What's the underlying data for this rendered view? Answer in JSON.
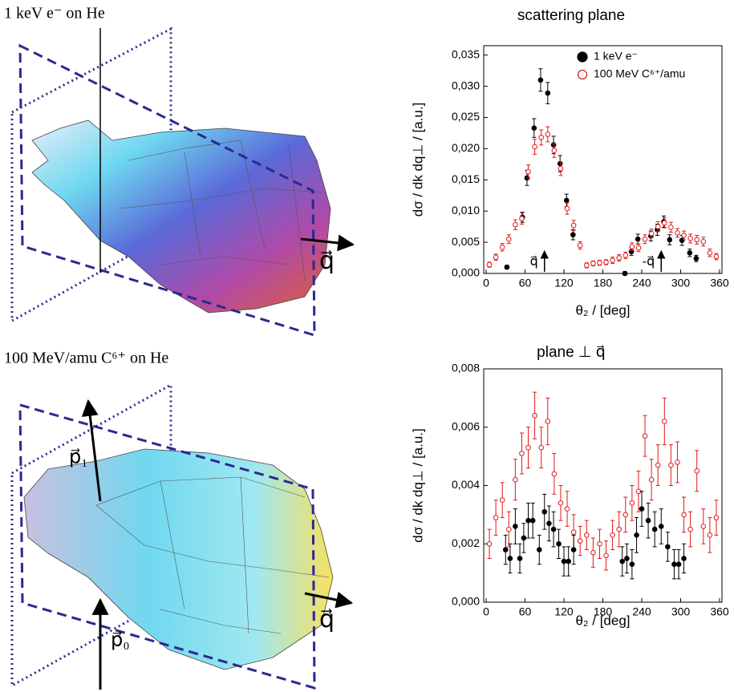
{
  "illustrations": {
    "top": {
      "title": "1 keV e⁻ on He",
      "vector": "q⃗"
    },
    "bottom": {
      "title": "100 MeV/amu C⁶⁺ on He",
      "vector": "q⃗",
      "incoming": "p⃗₀",
      "outgoing": "p⃗₁"
    }
  },
  "chart_data": [
    {
      "type": "scatter",
      "title": "scattering plane",
      "x_label": "θ₂  /  [deg]",
      "y_label": "dσ / dk dq⊥ / [a.u.]",
      "xlim": [
        0,
        360
      ],
      "xticks": [
        0,
        60,
        120,
        180,
        240,
        300,
        360
      ],
      "ylim": [
        0,
        0.0365
      ],
      "yticks": [
        {
          "value": 0,
          "label": "0,000"
        },
        {
          "value": 0.005,
          "label": "0,005"
        },
        {
          "value": 0.01,
          "label": "0,010"
        },
        {
          "value": 0.015,
          "label": "0,015"
        },
        {
          "value": 0.02,
          "label": "0,020"
        },
        {
          "value": 0.025,
          "label": "0,025"
        },
        {
          "value": 0.03,
          "label": "0,030"
        },
        {
          "value": 0.035,
          "label": "0,035"
        }
      ],
      "legend": "upper right",
      "annotations": [
        {
          "text": "q⃗",
          "x": 90
        },
        {
          "text": "-q⃗",
          "x": 270
        }
      ],
      "series": [
        {
          "name": "1 keV e⁻",
          "color": "#000000",
          "filled": true,
          "x": [
            32,
            56,
            63,
            74,
            84,
            95,
            104,
            114,
            124,
            134,
            214,
            224,
            234,
            254,
            264,
            274,
            283,
            302,
            314,
            324
          ],
          "values": [
            0.001,
            0.009,
            0.0153,
            0.0233,
            0.031,
            0.0289,
            0.0206,
            0.0176,
            0.0117,
            0.0062,
            0.0,
            0.0035,
            0.0055,
            0.006,
            0.007,
            0.0083,
            0.0054,
            0.0053,
            0.0033,
            0.0024
          ],
          "errors": [
            0.0003,
            0.0008,
            0.0012,
            0.0015,
            0.0018,
            0.0017,
            0.0014,
            0.0013,
            0.001,
            0.0008,
            0.0003,
            0.0006,
            0.0008,
            0.0008,
            0.0009,
            0.0009,
            0.0008,
            0.0008,
            0.0006,
            0.0005
          ]
        },
        {
          "name": "100 MeV C⁶⁺/amu",
          "color": "#e01818",
          "filled": false,
          "x": [
            5,
            15,
            25,
            35,
            45,
            55,
            65,
            75,
            85,
            95,
            105,
            115,
            125,
            135,
            145,
            155,
            165,
            175,
            185,
            195,
            205,
            215,
            225,
            235,
            245,
            255,
            265,
            275,
            285,
            295,
            305,
            315,
            325,
            335,
            345,
            355
          ],
          "values": [
            0.0014,
            0.0026,
            0.0042,
            0.0055,
            0.0078,
            0.0088,
            0.0163,
            0.0203,
            0.0218,
            0.0223,
            0.0197,
            0.0168,
            0.0104,
            0.0077,
            0.0045,
            0.0013,
            0.0016,
            0.0017,
            0.0018,
            0.0021,
            0.0025,
            0.0029,
            0.0043,
            0.0041,
            0.0055,
            0.0064,
            0.0075,
            0.0081,
            0.0074,
            0.0065,
            0.0061,
            0.0056,
            0.0054,
            0.0051,
            0.0033,
            0.0027
          ],
          "errors": [
            0.0004,
            0.0005,
            0.0006,
            0.0007,
            0.0008,
            0.0009,
            0.0011,
            0.0012,
            0.0012,
            0.0012,
            0.0011,
            0.0011,
            0.0009,
            0.0008,
            0.0006,
            0.0004,
            0.0004,
            0.0004,
            0.0004,
            0.0005,
            0.0005,
            0.0005,
            0.0006,
            0.0006,
            0.0007,
            0.0007,
            0.0008,
            0.0008,
            0.0008,
            0.0007,
            0.0007,
            0.0007,
            0.0007,
            0.0007,
            0.0006,
            0.0005
          ]
        }
      ]
    },
    {
      "type": "scatter",
      "title": "plane ⊥ q⃗",
      "x_label": "θ₂  /  [deg]",
      "y_label": "dσ / dk dq⊥ / [a.u.]",
      "xlim": [
        0,
        360
      ],
      "xticks": [
        0,
        60,
        120,
        180,
        240,
        300,
        360
      ],
      "ylim": [
        0,
        0.008
      ],
      "yticks": [
        {
          "value": 0,
          "label": "0,000"
        },
        {
          "value": 0.002,
          "label": "0,002"
        },
        {
          "value": 0.004,
          "label": "0,004"
        },
        {
          "value": 0.006,
          "label": "0,006"
        },
        {
          "value": 0.008,
          "label": "0,008"
        }
      ],
      "series": [
        {
          "color": "#e01818",
          "filled": false,
          "x": [
            5,
            15,
            25,
            35,
            45,
            55,
            65,
            75,
            85,
            95,
            105,
            115,
            125,
            135,
            145,
            155,
            165,
            175,
            185,
            195,
            205,
            215,
            225,
            235,
            245,
            255,
            265,
            275,
            285,
            295,
            305,
            315,
            325,
            335,
            345,
            355
          ],
          "values": [
            0.002,
            0.0029,
            0.0035,
            0.0025,
            0.0042,
            0.0051,
            0.0053,
            0.0064,
            0.0053,
            0.0062,
            0.0044,
            0.0034,
            0.0032,
            0.0024,
            0.0021,
            0.0023,
            0.0017,
            0.002,
            0.0016,
            0.0023,
            0.0025,
            0.003,
            0.0034,
            0.0038,
            0.0057,
            0.0042,
            0.0047,
            0.0062,
            0.0047,
            0.0048,
            0.003,
            0.0025,
            0.0045,
            0.0026,
            0.0023,
            0.0029
          ],
          "errors": [
            0.0005,
            0.0006,
            0.0006,
            0.0006,
            0.0007,
            0.0007,
            0.0007,
            0.0008,
            0.0007,
            0.0008,
            0.0007,
            0.0006,
            0.0006,
            0.0006,
            0.0005,
            0.0005,
            0.0005,
            0.0005,
            0.0005,
            0.0005,
            0.0006,
            0.0006,
            0.0006,
            0.0007,
            0.0007,
            0.0007,
            0.0007,
            0.0008,
            0.0007,
            0.0007,
            0.0006,
            0.0006,
            0.0007,
            0.0006,
            0.0006,
            0.0006
          ]
        },
        {
          "color": "#000000",
          "filled": true,
          "x": [
            30,
            37,
            45,
            52,
            58,
            65,
            72,
            82,
            90,
            97,
            104,
            112,
            120,
            127,
            135,
            210,
            217,
            225,
            232,
            240,
            250,
            260,
            270,
            280,
            290,
            297,
            305
          ],
          "values": [
            0.0018,
            0.0015,
            0.0026,
            0.0015,
            0.0022,
            0.0028,
            0.0028,
            0.0018,
            0.0031,
            0.0027,
            0.0025,
            0.002,
            0.0014,
            0.0014,
            0.0018,
            0.0014,
            0.0015,
            0.0013,
            0.0023,
            0.0032,
            0.0028,
            0.0025,
            0.0026,
            0.0019,
            0.0013,
            0.0013,
            0.0015
          ],
          "errors": [
            0.0005,
            0.0005,
            0.0006,
            0.0005,
            0.0005,
            0.0006,
            0.0006,
            0.0005,
            0.0006,
            0.0006,
            0.0006,
            0.0005,
            0.0005,
            0.0005,
            0.0005,
            0.0005,
            0.0005,
            0.0005,
            0.0006,
            0.0006,
            0.0006,
            0.0006,
            0.0006,
            0.0005,
            0.0005,
            0.0005,
            0.0005
          ]
        }
      ]
    }
  ]
}
